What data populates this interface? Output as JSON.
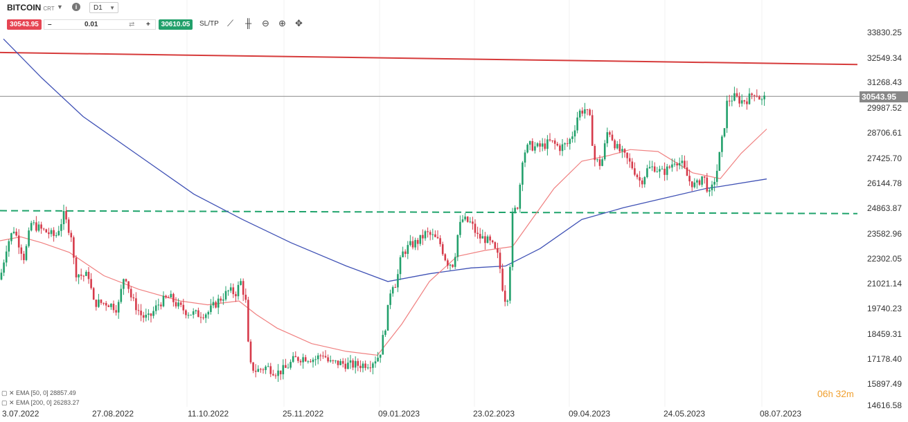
{
  "instrument": {
    "symbol": "BITCOIN",
    "suffix": "CRT",
    "timeframe": "D1"
  },
  "trade": {
    "sell_price": "30543.95",
    "quantity": "0.01",
    "buy_price": "30610.05",
    "sltp_label": "SL/TP"
  },
  "price_axis": [
    "33830.25",
    "32549.34",
    "31268.43",
    "29987.52",
    "28706.61",
    "27425.70",
    "26144.78",
    "24863.87",
    "23582.96",
    "22302.05",
    "21021.14",
    "19740.23",
    "18459.31",
    "17178.40",
    "15897.49",
    "14616.58"
  ],
  "current_price": "30543.95",
  "date_axis": [
    "3.07.2022",
    "27.08.2022",
    "11.10.2022",
    "25.11.2022",
    "09.01.2023",
    "23.02.2023",
    "09.04.2023",
    "24.05.2023",
    "08.07.2023"
  ],
  "indicators": [
    {
      "label": "EMA [50, 0] 28857.49",
      "color": "#f08080"
    },
    {
      "label": "EMA [200, 0] 26283.27",
      "color": "#3f51b5"
    }
  ],
  "timer": {
    "hours": "06",
    "h": "h",
    "minutes": "32",
    "m": "m"
  },
  "colors": {
    "bull": "#22a06b",
    "bear": "#d63a4a",
    "resistance": "#d63a3a",
    "support": "#1fa36b",
    "ema50": "#f08080",
    "ema200": "#3f51b5"
  },
  "chart_data": {
    "type": "candlestick",
    "x_range": [
      "3.07.2022",
      "08.07.2023"
    ],
    "y_range": [
      14616.58,
      33830.25
    ],
    "current_price": 30543.95,
    "resistance_line": {
      "from": 32800,
      "to": 32180
    },
    "support_line": {
      "from": 24650,
      "to": 24500
    },
    "ema50_last": 28857.49,
    "ema200_last": 26283.27,
    "close_path": [
      [
        0,
        21100
      ],
      [
        10,
        22900
      ],
      [
        20,
        23700
      ],
      [
        35,
        22200
      ],
      [
        45,
        24000
      ],
      [
        58,
        23700
      ],
      [
        70,
        23500
      ],
      [
        80,
        23300
      ],
      [
        92,
        24400
      ],
      [
        103,
        23400
      ],
      [
        108,
        21500
      ],
      [
        118,
        21300
      ],
      [
        128,
        21300
      ],
      [
        135,
        19900
      ],
      [
        155,
        19900
      ],
      [
        170,
        19600
      ],
      [
        180,
        21500
      ],
      [
        190,
        20100
      ],
      [
        205,
        19200
      ],
      [
        215,
        19100
      ],
      [
        230,
        19900
      ],
      [
        245,
        20200
      ],
      [
        258,
        19700
      ],
      [
        272,
        19400
      ],
      [
        285,
        19300
      ],
      [
        300,
        19400
      ],
      [
        315,
        20000
      ],
      [
        330,
        20500
      ],
      [
        340,
        20400
      ],
      [
        348,
        21000
      ],
      [
        355,
        19900
      ],
      [
        360,
        16700
      ],
      [
        370,
        16400
      ],
      [
        385,
        16600
      ],
      [
        400,
        16300
      ],
      [
        412,
        16500
      ],
      [
        425,
        17000
      ],
      [
        440,
        17100
      ],
      [
        455,
        17000
      ],
      [
        467,
        17300
      ],
      [
        475,
        16800
      ],
      [
        490,
        16800
      ],
      [
        505,
        16700
      ],
      [
        520,
        16700
      ],
      [
        535,
        16800
      ],
      [
        548,
        17200
      ],
      [
        558,
        19000
      ],
      [
        565,
        20900
      ],
      [
        572,
        20900
      ],
      [
        580,
        22400
      ],
      [
        590,
        22800
      ],
      [
        605,
        23100
      ],
      [
        615,
        23500
      ],
      [
        625,
        23300
      ],
      [
        635,
        23000
      ],
      [
        645,
        22000
      ],
      [
        655,
        21900
      ],
      [
        662,
        23700
      ],
      [
        668,
        24200
      ],
      [
        680,
        24000
      ],
      [
        690,
        23300
      ],
      [
        700,
        23200
      ],
      [
        710,
        22900
      ],
      [
        720,
        22200
      ],
      [
        728,
        20100
      ],
      [
        734,
        20300
      ],
      [
        740,
        24400
      ],
      [
        748,
        25000
      ],
      [
        755,
        27600
      ],
      [
        765,
        28000
      ],
      [
        775,
        27900
      ],
      [
        785,
        28000
      ],
      [
        795,
        28200
      ],
      [
        808,
        27900
      ],
      [
        820,
        28100
      ],
      [
        828,
        28700
      ],
      [
        835,
        29700
      ],
      [
        845,
        29900
      ],
      [
        852,
        29300
      ],
      [
        858,
        27300
      ],
      [
        868,
        27000
      ],
      [
        878,
        28900
      ],
      [
        890,
        27900
      ],
      [
        898,
        27600
      ],
      [
        905,
        27300
      ],
      [
        915,
        26800
      ],
      [
        925,
        26100
      ],
      [
        935,
        26800
      ],
      [
        945,
        26900
      ],
      [
        955,
        26600
      ],
      [
        965,
        26800
      ],
      [
        975,
        27300
      ],
      [
        985,
        27000
      ],
      [
        995,
        26200
      ],
      [
        1005,
        25900
      ],
      [
        1015,
        26500
      ],
      [
        1025,
        25400
      ],
      [
        1035,
        26700
      ],
      [
        1045,
        28800
      ],
      [
        1050,
        30300
      ],
      [
        1060,
        30500
      ],
      [
        1070,
        30300
      ],
      [
        1080,
        30400
      ],
      [
        1090,
        30800
      ],
      [
        1100,
        30300
      ],
      [
        1107,
        30543.95
      ]
    ],
    "ema50_path": [
      [
        0,
        23100
      ],
      [
        30,
        23300
      ],
      [
        60,
        23000
      ],
      [
        100,
        22500
      ],
      [
        150,
        21300
      ],
      [
        200,
        20600
      ],
      [
        260,
        20000
      ],
      [
        300,
        19800
      ],
      [
        345,
        20000
      ],
      [
        370,
        19300
      ],
      [
        400,
        18600
      ],
      [
        450,
        17800
      ],
      [
        500,
        17400
      ],
      [
        545,
        17200
      ],
      [
        580,
        18800
      ],
      [
        620,
        21000
      ],
      [
        660,
        22300
      ],
      [
        700,
        22600
      ],
      [
        740,
        22800
      ],
      [
        760,
        23800
      ],
      [
        800,
        25800
      ],
      [
        840,
        27200
      ],
      [
        880,
        27500
      ],
      [
        910,
        27800
      ],
      [
        950,
        27700
      ],
      [
        1000,
        26600
      ],
      [
        1040,
        26300
      ],
      [
        1070,
        27600
      ],
      [
        1107,
        28857.49
      ]
    ],
    "ema200_path": [
      [
        5,
        33500
      ],
      [
        60,
        31500
      ],
      [
        120,
        29500
      ],
      [
        200,
        27500
      ],
      [
        280,
        25500
      ],
      [
        350,
        24200
      ],
      [
        420,
        23000
      ],
      [
        500,
        21800
      ],
      [
        560,
        21000
      ],
      [
        620,
        21400
      ],
      [
        680,
        21700
      ],
      [
        730,
        21800
      ],
      [
        780,
        22700
      ],
      [
        840,
        24200
      ],
      [
        900,
        24800
      ],
      [
        960,
        25300
      ],
      [
        1020,
        25800
      ],
      [
        1040,
        25900
      ],
      [
        1107,
        26283.27
      ]
    ]
  }
}
